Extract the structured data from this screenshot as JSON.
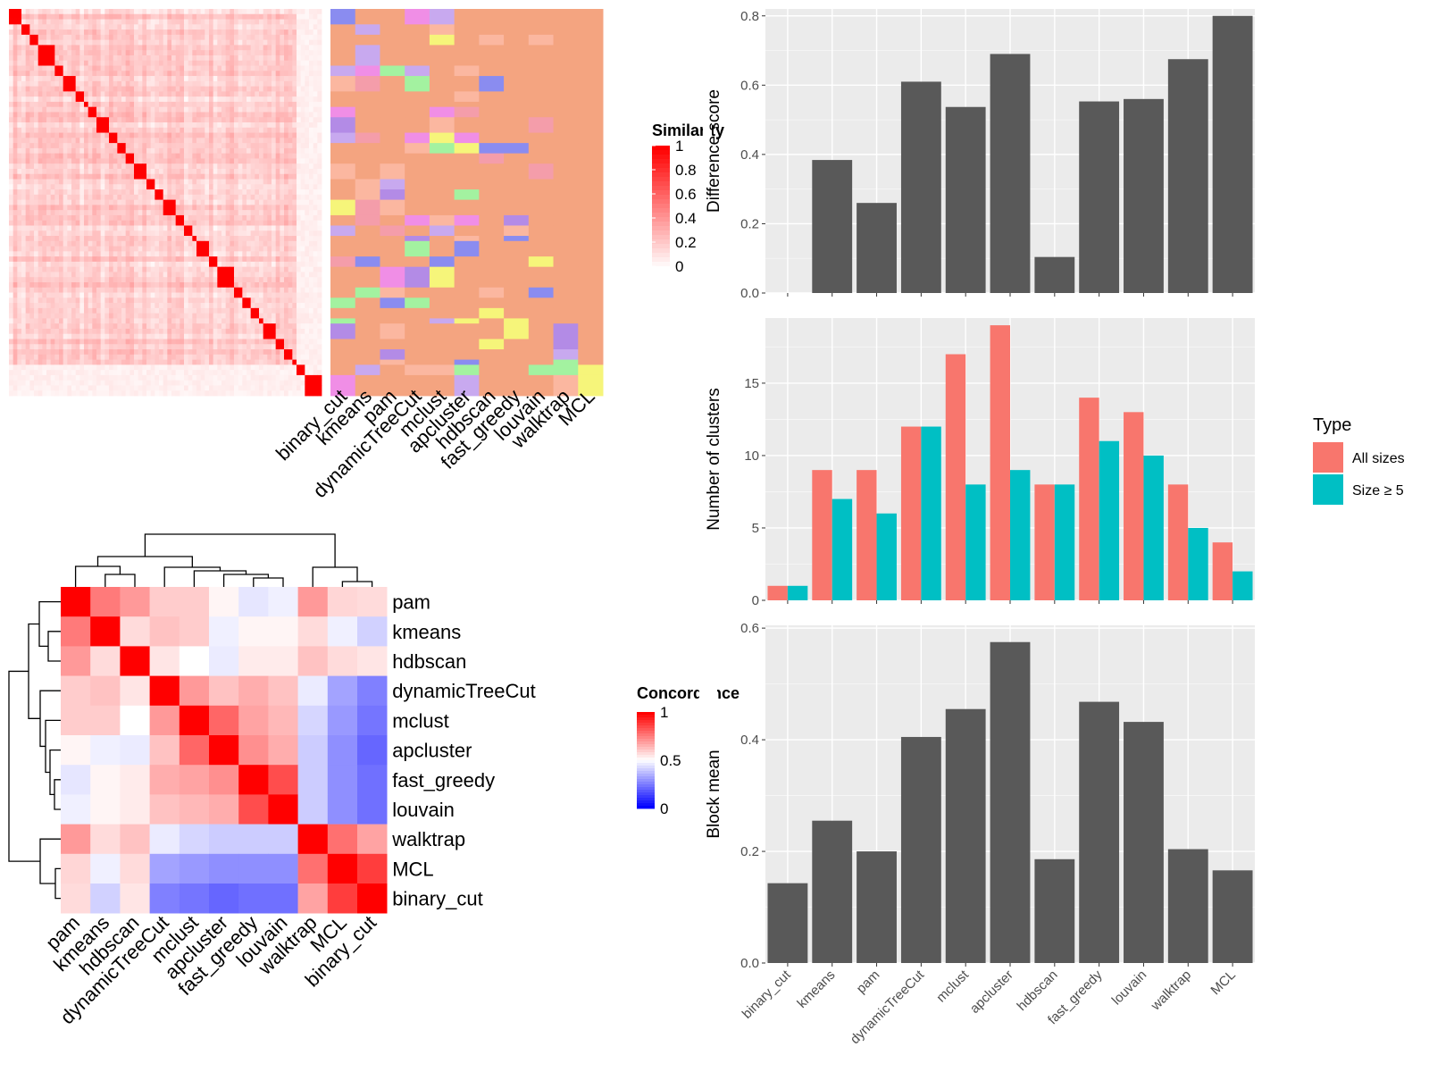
{
  "chart_data": [
    {
      "type": "heatmap",
      "name": "similarity_heatmap",
      "legend": {
        "title": "Similarity",
        "ticks": [
          "1",
          "0.8",
          "0.6",
          "0.4",
          "0.2",
          "0"
        ],
        "colors": {
          "low": "#ffffff",
          "high": "#ff0000"
        }
      },
      "annotation_columns": [
        "binary_cut",
        "kmeans",
        "pam",
        "dynamicTreeCut",
        "mclust",
        "apcluster",
        "hdbscan",
        "fast_greedy",
        "louvain",
        "walktrap",
        "MCL"
      ],
      "diagonal_blocks": [
        3,
        2,
        2,
        4,
        2,
        3,
        2,
        1,
        2,
        3,
        2,
        2,
        2,
        3,
        2,
        2,
        3,
        2,
        2,
        1,
        3,
        2,
        4,
        2,
        2,
        2,
        1,
        3,
        2,
        2,
        1,
        2,
        4
      ],
      "palette": [
        "#f08ee6",
        "#f6f57a",
        "#b38be6",
        "#f49daa",
        "#a3f2a0",
        "#fbb7a0",
        "#8a8cf0",
        "#c8a9ef",
        "#f4a480"
      ]
    },
    {
      "type": "heatmap",
      "name": "concordance_heatmap",
      "legend": {
        "title": "Concordance",
        "ticks": [
          "1",
          "0.5",
          "0"
        ],
        "colors": {
          "low": "#0000ff",
          "mid": "#ffffff",
          "high": "#ff0000"
        }
      },
      "row_labels": [
        "pam",
        "kmeans",
        "hdbscan",
        "dynamicTreeCut",
        "mclust",
        "apcluster",
        "fast_greedy",
        "louvain",
        "walktrap",
        "MCL",
        "binary_cut"
      ],
      "col_labels": [
        "pam",
        "kmeans",
        "hdbscan",
        "dynamicTreeCut",
        "mclust",
        "apcluster",
        "fast_greedy",
        "louvain",
        "walktrap",
        "MCL",
        "binary_cut"
      ],
      "values": [
        [
          1.0,
          0.76,
          0.7,
          0.6,
          0.6,
          0.52,
          0.45,
          0.47,
          0.7,
          0.58,
          0.57
        ],
        [
          0.76,
          1.0,
          0.57,
          0.62,
          0.6,
          0.47,
          0.52,
          0.52,
          0.57,
          0.47,
          0.41
        ],
        [
          0.7,
          0.57,
          1.0,
          0.55,
          0.5,
          0.46,
          0.54,
          0.54,
          0.62,
          0.57,
          0.55
        ],
        [
          0.6,
          0.62,
          0.55,
          1.0,
          0.7,
          0.62,
          0.66,
          0.62,
          0.46,
          0.32,
          0.25
        ],
        [
          0.6,
          0.6,
          0.5,
          0.7,
          1.0,
          0.8,
          0.68,
          0.64,
          0.42,
          0.3,
          0.23
        ],
        [
          0.52,
          0.47,
          0.46,
          0.62,
          0.8,
          1.0,
          0.72,
          0.66,
          0.4,
          0.28,
          0.2
        ],
        [
          0.45,
          0.52,
          0.54,
          0.66,
          0.68,
          0.72,
          1.0,
          0.85,
          0.4,
          0.28,
          0.22
        ],
        [
          0.47,
          0.52,
          0.54,
          0.62,
          0.64,
          0.66,
          0.85,
          1.0,
          0.4,
          0.28,
          0.22
        ],
        [
          0.7,
          0.57,
          0.62,
          0.46,
          0.42,
          0.4,
          0.4,
          0.4,
          1.0,
          0.78,
          0.68
        ],
        [
          0.58,
          0.47,
          0.57,
          0.32,
          0.3,
          0.28,
          0.28,
          0.28,
          0.78,
          1.0,
          0.88
        ],
        [
          0.57,
          0.41,
          0.55,
          0.25,
          0.23,
          0.2,
          0.22,
          0.22,
          0.68,
          0.88,
          1.0
        ]
      ]
    },
    {
      "type": "bar",
      "name": "difference_score",
      "categories": [
        "binary_cut",
        "kmeans",
        "pam",
        "dynamicTreeCut",
        "mclust",
        "apcluster",
        "hdbscan",
        "fast_greedy",
        "louvain",
        "walktrap",
        "MCL"
      ],
      "values": [
        0,
        0.384,
        0.26,
        0.61,
        0.537,
        0.69,
        0.104,
        0.553,
        0.56,
        0.675,
        0.8
      ],
      "ylabel": "Difference score",
      "ylim": [
        0,
        0.82
      ],
      "yticks": [
        0.0,
        0.2,
        0.4,
        0.6,
        0.8
      ],
      "show_x_labels": false,
      "bar_color": "#595959"
    },
    {
      "type": "bar",
      "name": "number_of_clusters",
      "categories": [
        "binary_cut",
        "kmeans",
        "pam",
        "dynamicTreeCut",
        "mclust",
        "apcluster",
        "hdbscan",
        "fast_greedy",
        "louvain",
        "walktrap",
        "MCL"
      ],
      "series": [
        {
          "name": "All sizes",
          "color": "#f8766d",
          "values": [
            1,
            9,
            9,
            12,
            17,
            19,
            8,
            14,
            13,
            8,
            4
          ]
        },
        {
          "name": "Size ≥ 5",
          "color": "#00bfc4",
          "values": [
            1,
            7,
            6,
            12,
            8,
            9,
            8,
            11,
            10,
            5,
            2
          ]
        }
      ],
      "ylabel": "Number of clusters",
      "ylim": [
        0,
        19.5
      ],
      "yticks": [
        0,
        5,
        10,
        15
      ],
      "legend": {
        "title": "Type",
        "position": "right"
      },
      "show_x_labels": false
    },
    {
      "type": "bar",
      "name": "block_mean",
      "categories": [
        "binary_cut",
        "kmeans",
        "pam",
        "dynamicTreeCut",
        "mclust",
        "apcluster",
        "hdbscan",
        "fast_greedy",
        "louvain",
        "walktrap",
        "MCL"
      ],
      "values": [
        0.143,
        0.255,
        0.2,
        0.405,
        0.455,
        0.575,
        0.186,
        0.468,
        0.432,
        0.204,
        0.166
      ],
      "ylabel": "Block mean",
      "ylim": [
        0,
        0.605
      ],
      "yticks": [
        0.0,
        0.2,
        0.4,
        0.6
      ],
      "show_x_labels": true,
      "bar_color": "#595959"
    }
  ]
}
